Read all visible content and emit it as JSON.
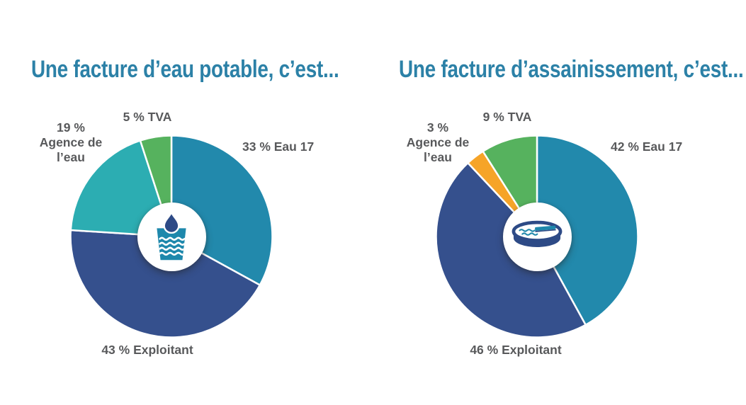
{
  "theme": {
    "background": "#ffffff",
    "title": "#2c81a7",
    "label": "#58595b",
    "icon_navy": "#2d4a86",
    "icon_teal": "#1e88ac",
    "wave_teal": "#2289ac"
  },
  "chart_data": [
    {
      "type": "pie",
      "title": "Une facture d’eau potable, c’est...",
      "donut": true,
      "donut_hole_pct": 33,
      "start_angle_deg": 0,
      "direction": "clockwise",
      "legend_position": "around",
      "center_icon": "water-glass",
      "slices": [
        {
          "label": "Eau 17",
          "pct": 33,
          "color": "#2289ac",
          "annotation": "33 % Eau 17"
        },
        {
          "label": "Exploitant",
          "pct": 43,
          "color": "#35508d",
          "annotation": "43 % Exploitant"
        },
        {
          "label": "Agence de l'eau",
          "pct": 19,
          "color": "#2cadb2",
          "annotation": "19 %\nAgence de\nl’eau"
        },
        {
          "label": "TVA",
          "pct": 5,
          "color": "#56b25e",
          "annotation": "5 % TVA"
        }
      ]
    },
    {
      "type": "pie",
      "title": "Une facture d’assainissement, c’est...",
      "donut": true,
      "donut_hole_pct": 33,
      "start_angle_deg": 0,
      "direction": "clockwise",
      "legend_position": "around",
      "center_icon": "treatment-basin",
      "slices": [
        {
          "label": "Eau 17",
          "pct": 42,
          "color": "#2289ac",
          "annotation": "42 % Eau 17"
        },
        {
          "label": "Exploitant",
          "pct": 46,
          "color": "#35508d",
          "annotation": "46 % Exploitant"
        },
        {
          "label": "Agence de l'eau",
          "pct": 3,
          "color": "#f6a428",
          "annotation": "3 %\nAgence de\nl’eau"
        },
        {
          "label": "TVA",
          "pct": 9,
          "color": "#56b25e",
          "annotation": "9 % TVA"
        }
      ]
    }
  ]
}
